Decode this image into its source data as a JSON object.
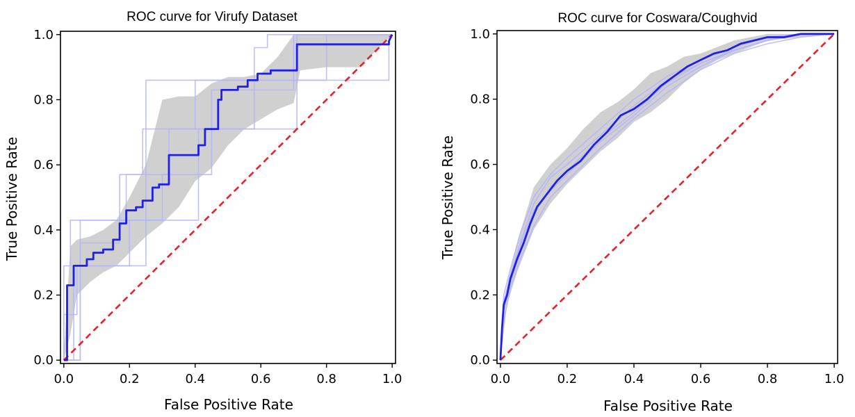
{
  "chart_data": [
    {
      "type": "line",
      "title": "ROC curve for Virufy Dataset",
      "xlabel": "False Positive Rate",
      "ylabel": "True Positive Rate",
      "xlim": [
        0,
        1
      ],
      "ylim": [
        0,
        1
      ],
      "xticks": [
        "0.0",
        "0.2",
        "0.4",
        "0.6",
        "0.8",
        "1.0"
      ],
      "yticks": [
        "0.0",
        "0.2",
        "0.4",
        "0.6",
        "0.8",
        "1.0"
      ],
      "grid": false,
      "colors": {
        "mean": "#1f1fe6",
        "band": "#c8c8c8",
        "folds": "#b4b4ff",
        "chance": "#e8202a"
      },
      "mean_curve": {
        "x": [
          0.0,
          0.01,
          0.01,
          0.03,
          0.03,
          0.07,
          0.07,
          0.09,
          0.09,
          0.12,
          0.12,
          0.15,
          0.15,
          0.17,
          0.17,
          0.19,
          0.19,
          0.22,
          0.22,
          0.24,
          0.24,
          0.27,
          0.27,
          0.29,
          0.29,
          0.32,
          0.32,
          0.41,
          0.41,
          0.43,
          0.43,
          0.47,
          0.47,
          0.48,
          0.48,
          0.51,
          0.51,
          0.53,
          0.53,
          0.56,
          0.56,
          0.59,
          0.59,
          0.63,
          0.63,
          0.71,
          0.71,
          0.99,
          0.99,
          1.0
        ],
        "y": [
          0.0,
          0.0,
          0.23,
          0.23,
          0.29,
          0.29,
          0.31,
          0.31,
          0.33,
          0.33,
          0.34,
          0.34,
          0.37,
          0.37,
          0.42,
          0.42,
          0.46,
          0.46,
          0.47,
          0.47,
          0.49,
          0.49,
          0.53,
          0.53,
          0.54,
          0.54,
          0.63,
          0.63,
          0.66,
          0.66,
          0.71,
          0.71,
          0.8,
          0.8,
          0.83,
          0.83,
          0.83,
          0.83,
          0.84,
          0.84,
          0.86,
          0.86,
          0.88,
          0.88,
          0.89,
          0.89,
          0.97,
          0.97,
          0.98,
          1.0
        ]
      },
      "std_band": {
        "x": [
          0.0,
          0.02,
          0.04,
          0.08,
          0.12,
          0.16,
          0.2,
          0.25,
          0.3,
          0.35,
          0.4,
          0.45,
          0.5,
          0.55,
          0.6,
          0.65,
          0.7,
          0.72,
          0.8,
          0.9,
          1.0
        ],
        "lower": [
          0.0,
          0.08,
          0.2,
          0.24,
          0.27,
          0.29,
          0.33,
          0.38,
          0.42,
          0.47,
          0.55,
          0.59,
          0.66,
          0.71,
          0.74,
          0.77,
          0.79,
          0.89,
          0.9,
          0.9,
          1.0
        ],
        "upper": [
          0.02,
          0.35,
          0.37,
          0.38,
          0.4,
          0.43,
          0.5,
          0.6,
          0.8,
          0.81,
          0.81,
          0.85,
          0.87,
          0.87,
          0.88,
          0.93,
          1.0,
          1.0,
          1.0,
          1.0,
          1.0
        ]
      },
      "fold_curves": [
        {
          "x": [
            0.0,
            0.0,
            0.02,
            0.02,
            0.19,
            0.19,
            0.24,
            0.24,
            0.4,
            0.4,
            0.47,
            0.47,
            0.99,
            0.99,
            1.0
          ],
          "y": [
            0.0,
            0.29,
            0.29,
            0.43,
            0.43,
            0.57,
            0.57,
            0.71,
            0.71,
            0.86,
            0.86,
            0.86,
            0.86,
            1.0,
            1.0
          ]
        },
        {
          "x": [
            0.0,
            0.05,
            0.05,
            0.2,
            0.2,
            0.41,
            0.41,
            0.48,
            0.48,
            0.71,
            0.71,
            1.0
          ],
          "y": [
            0.0,
            0.0,
            0.43,
            0.43,
            0.43,
            0.43,
            0.71,
            0.71,
            0.71,
            0.71,
            1.0,
            1.0
          ]
        },
        {
          "x": [
            0.0,
            0.0,
            0.04,
            0.04,
            0.25,
            0.25,
            0.6,
            0.6,
            0.8,
            0.8,
            1.0
          ],
          "y": [
            0.0,
            0.14,
            0.14,
            0.29,
            0.29,
            0.86,
            0.86,
            0.86,
            0.86,
            1.0,
            1.0
          ]
        },
        {
          "x": [
            0.0,
            0.03,
            0.03,
            0.2,
            0.2,
            0.3,
            0.3,
            0.45,
            0.45,
            0.7,
            0.7,
            1.0
          ],
          "y": [
            0.0,
            0.0,
            0.29,
            0.29,
            0.43,
            0.43,
            0.57,
            0.57,
            0.83,
            0.83,
            1.0,
            1.0
          ]
        },
        {
          "x": [
            0.0,
            0.05,
            0.05,
            0.17,
            0.17,
            0.32,
            0.32,
            0.58,
            0.58,
            0.62,
            0.62,
            1.0
          ],
          "y": [
            0.0,
            0.0,
            0.36,
            0.36,
            0.57,
            0.57,
            0.71,
            0.71,
            0.96,
            0.96,
            1.0,
            1.0
          ]
        }
      ],
      "chance_line": {
        "x": [
          0,
          1
        ],
        "y": [
          0,
          1
        ]
      }
    },
    {
      "type": "line",
      "title": "ROC curve for Coswara/Coughvid",
      "xlabel": "False Positive Rate",
      "ylabel": "True Positive Rate",
      "xlim": [
        0,
        1
      ],
      "ylim": [
        0,
        1
      ],
      "xticks": [
        "0.0",
        "0.2",
        "0.4",
        "0.6",
        "0.8",
        "1.0"
      ],
      "yticks": [
        "0.0",
        "0.2",
        "0.4",
        "0.6",
        "0.8",
        "1.0"
      ],
      "grid": false,
      "colors": {
        "mean": "#1f1fe6",
        "band": "#c8c8c8",
        "folds": "#b4b4ff",
        "chance": "#e8202a"
      },
      "mean_curve": {
        "x": [
          0.0,
          0.005,
          0.01,
          0.02,
          0.03,
          0.05,
          0.07,
          0.09,
          0.11,
          0.14,
          0.17,
          0.2,
          0.24,
          0.28,
          0.32,
          0.36,
          0.4,
          0.44,
          0.48,
          0.52,
          0.56,
          0.6,
          0.64,
          0.68,
          0.72,
          0.76,
          0.8,
          0.85,
          0.9,
          0.95,
          1.0
        ],
        "y": [
          0.0,
          0.1,
          0.17,
          0.2,
          0.25,
          0.31,
          0.36,
          0.42,
          0.47,
          0.51,
          0.55,
          0.58,
          0.61,
          0.66,
          0.7,
          0.75,
          0.77,
          0.8,
          0.84,
          0.87,
          0.9,
          0.92,
          0.94,
          0.95,
          0.97,
          0.98,
          0.99,
          0.99,
          1.0,
          1.0,
          1.0
        ]
      },
      "std_band": {
        "x": [
          0.0,
          0.02,
          0.05,
          0.1,
          0.15,
          0.2,
          0.25,
          0.3,
          0.35,
          0.4,
          0.45,
          0.5,
          0.55,
          0.6,
          0.65,
          0.7,
          0.75,
          0.8,
          0.9,
          1.0
        ],
        "lower": [
          0.0,
          0.17,
          0.27,
          0.4,
          0.48,
          0.54,
          0.59,
          0.64,
          0.68,
          0.73,
          0.76,
          0.8,
          0.85,
          0.89,
          0.92,
          0.94,
          0.96,
          0.98,
          0.99,
          1.0
        ],
        "upper": [
          0.02,
          0.23,
          0.36,
          0.53,
          0.6,
          0.65,
          0.71,
          0.76,
          0.79,
          0.83,
          0.88,
          0.9,
          0.93,
          0.94,
          0.96,
          0.98,
          0.99,
          1.0,
          1.0,
          1.0
        ]
      },
      "fold_curves": [
        {
          "x": [
            0.0,
            0.01,
            0.03,
            0.06,
            0.1,
            0.15,
            0.2,
            0.3,
            0.4,
            0.5,
            0.6,
            0.7,
            0.8,
            0.9,
            1.0
          ],
          "y": [
            0.0,
            0.15,
            0.24,
            0.33,
            0.45,
            0.53,
            0.58,
            0.68,
            0.76,
            0.85,
            0.91,
            0.95,
            0.98,
            1.0,
            1.0
          ]
        },
        {
          "x": [
            0.0,
            0.01,
            0.03,
            0.06,
            0.1,
            0.15,
            0.2,
            0.3,
            0.4,
            0.5,
            0.6,
            0.7,
            0.8,
            0.9,
            1.0
          ],
          "y": [
            0.0,
            0.2,
            0.28,
            0.39,
            0.5,
            0.57,
            0.62,
            0.71,
            0.8,
            0.87,
            0.92,
            0.96,
            0.99,
            1.0,
            1.0
          ]
        },
        {
          "x": [
            0.0,
            0.01,
            0.03,
            0.06,
            0.1,
            0.15,
            0.2,
            0.3,
            0.4,
            0.5,
            0.6,
            0.7,
            0.8,
            0.9,
            1.0
          ],
          "y": [
            0.0,
            0.12,
            0.22,
            0.31,
            0.41,
            0.5,
            0.55,
            0.65,
            0.74,
            0.82,
            0.89,
            0.94,
            0.97,
            0.99,
            1.0
          ]
        },
        {
          "x": [
            0.0,
            0.01,
            0.03,
            0.06,
            0.1,
            0.15,
            0.2,
            0.3,
            0.4,
            0.5,
            0.6,
            0.7,
            0.8,
            0.9,
            1.0
          ],
          "y": [
            0.0,
            0.18,
            0.26,
            0.36,
            0.48,
            0.56,
            0.6,
            0.69,
            0.78,
            0.86,
            0.91,
            0.95,
            0.98,
            1.0,
            1.0
          ]
        },
        {
          "x": [
            0.0,
            0.01,
            0.03,
            0.06,
            0.1,
            0.15,
            0.2,
            0.3,
            0.4,
            0.5,
            0.6,
            0.7,
            0.8,
            0.9,
            1.0
          ],
          "y": [
            0.0,
            0.16,
            0.25,
            0.35,
            0.46,
            0.52,
            0.57,
            0.67,
            0.75,
            0.84,
            0.9,
            0.95,
            0.98,
            1.0,
            1.0
          ]
        }
      ],
      "chance_line": {
        "x": [
          0,
          1
        ],
        "y": [
          0,
          1
        ]
      }
    }
  ]
}
